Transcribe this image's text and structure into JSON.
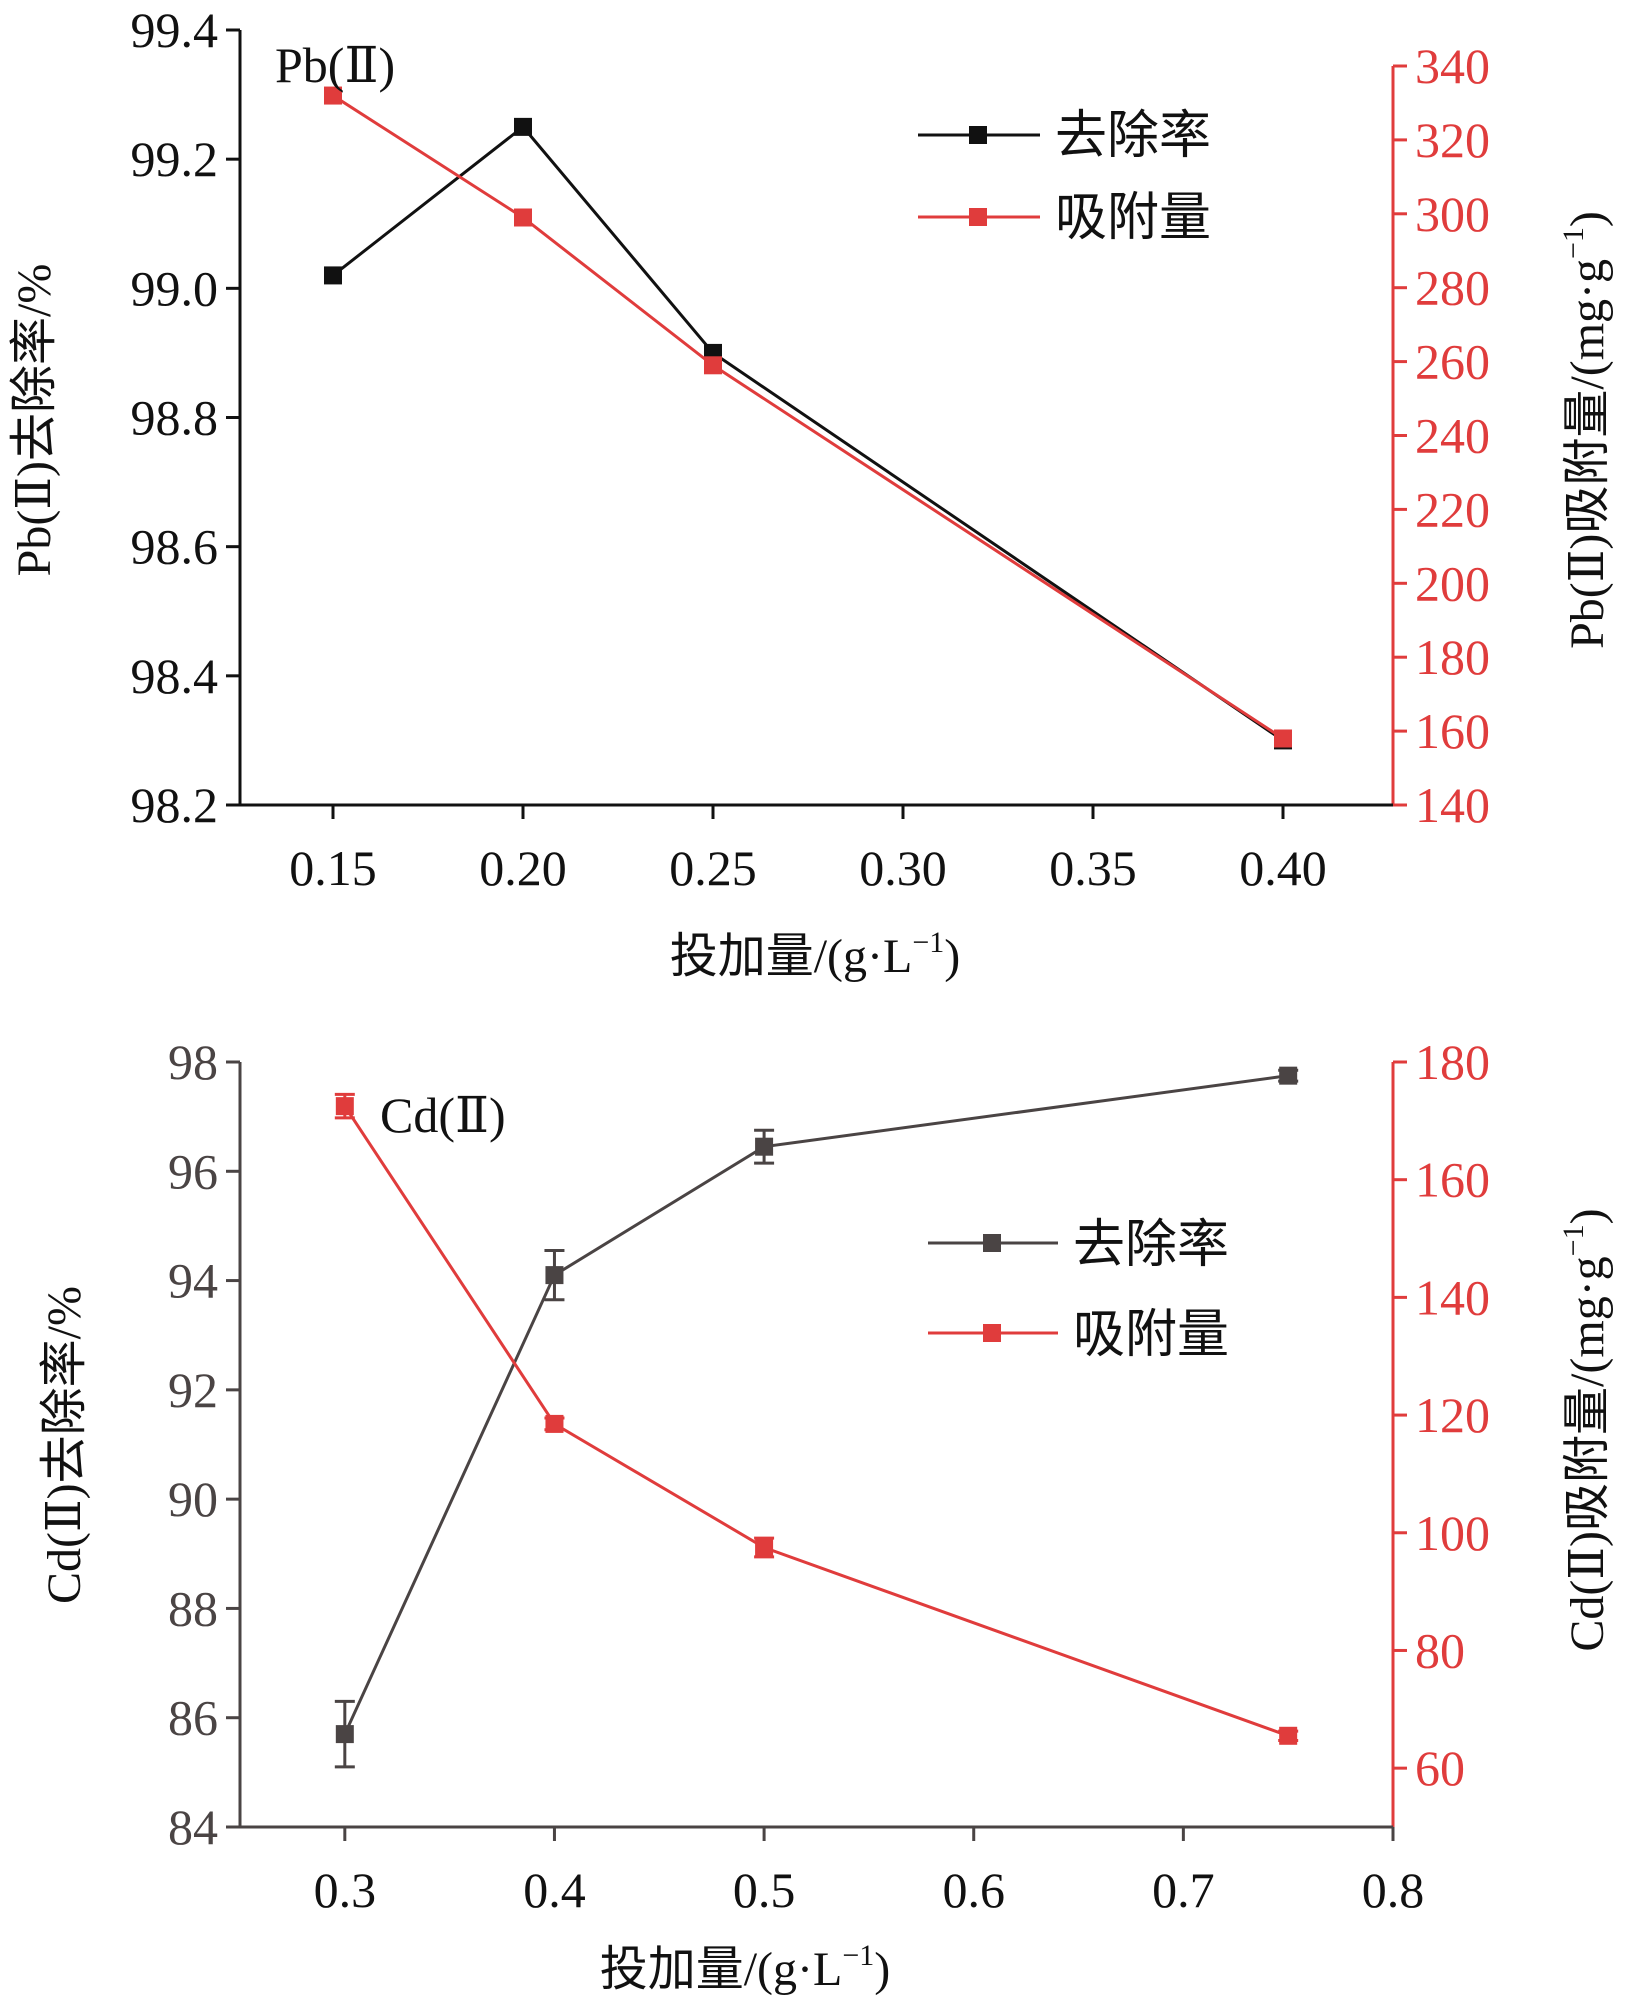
{
  "colors": {
    "black": "#111111",
    "dark": "#4a4444",
    "red": "#e03c3c"
  },
  "chart_data": [
    {
      "type": "line",
      "panel_label": "Pb(Ⅱ)",
      "xlabel": "投加量/(g·L",
      "xlabel_sup": "−1",
      "xlabel_end": ")",
      "categories": [
        "0.15",
        "0.20",
        "0.25",
        "0.30",
        "0.35",
        "0.40"
      ],
      "ylabel_left": "Pb(Ⅱ)去除率/%",
      "ylabel_right": "Pb(Ⅱ)吸附量/(mg·g",
      "ylabel_right_sup": "−1",
      "ylabel_right_end": ")",
      "ylim_left": [
        98.2,
        99.4
      ],
      "yticks_left": [
        "98.2",
        "98.4",
        "98.6",
        "98.8",
        "99.0",
        "99.2",
        "99.4"
      ],
      "ylim_right": [
        140,
        340
      ],
      "yticks_right": [
        "140",
        "160",
        "180",
        "200",
        "220",
        "240",
        "260",
        "280",
        "300",
        "320",
        "340"
      ],
      "legend": [
        "去除率",
        "吸附量"
      ],
      "legend_position": "top-right",
      "series": [
        {
          "name": "去除率",
          "axis": "left",
          "x": [
            0.15,
            0.2,
            0.25,
            0.4
          ],
          "values": [
            99.02,
            99.25,
            98.9,
            98.3
          ]
        },
        {
          "name": "吸附量",
          "axis": "right",
          "x": [
            0.15,
            0.2,
            0.25,
            0.4
          ],
          "values": [
            332,
            299,
            259,
            158
          ]
        }
      ]
    },
    {
      "type": "line",
      "panel_label": "Cd(Ⅱ)",
      "xlabel": "投加量/(g·L",
      "xlabel_sup": "−1",
      "xlabel_end": ")",
      "xlim": [
        0.25,
        0.8
      ],
      "xticks": [
        "0.3",
        "0.4",
        "0.5",
        "0.6",
        "0.7",
        "0.8"
      ],
      "ylabel_left": "Cd(Ⅱ)去除率/%",
      "ylabel_right": "Cd(Ⅱ)吸附量/(mg·g",
      "ylabel_right_sup": "−1",
      "ylabel_right_end": ")",
      "ylim_left": [
        84,
        98
      ],
      "yticks_left": [
        "84",
        "86",
        "88",
        "90",
        "92",
        "94",
        "96",
        "98"
      ],
      "ylim_right": [
        50,
        180
      ],
      "yticks_right": [
        "60",
        "80",
        "100",
        "120",
        "140",
        "160",
        "180"
      ],
      "legend": [
        "去除率",
        "吸附量"
      ],
      "legend_position": "right",
      "series": [
        {
          "name": "去除率",
          "axis": "left",
          "x": [
            0.3,
            0.4,
            0.5,
            0.75
          ],
          "values": [
            85.7,
            94.1,
            96.45,
            97.75
          ],
          "err": [
            0.6,
            0.45,
            0.3,
            0.1
          ]
        },
        {
          "name": "吸附量",
          "axis": "right",
          "x": [
            0.3,
            0.4,
            0.5,
            0.75
          ],
          "values": [
            172.5,
            118.5,
            97.5,
            65.5
          ],
          "err": [
            2.0,
            1.0,
            1.6,
            0.8
          ]
        }
      ]
    }
  ]
}
